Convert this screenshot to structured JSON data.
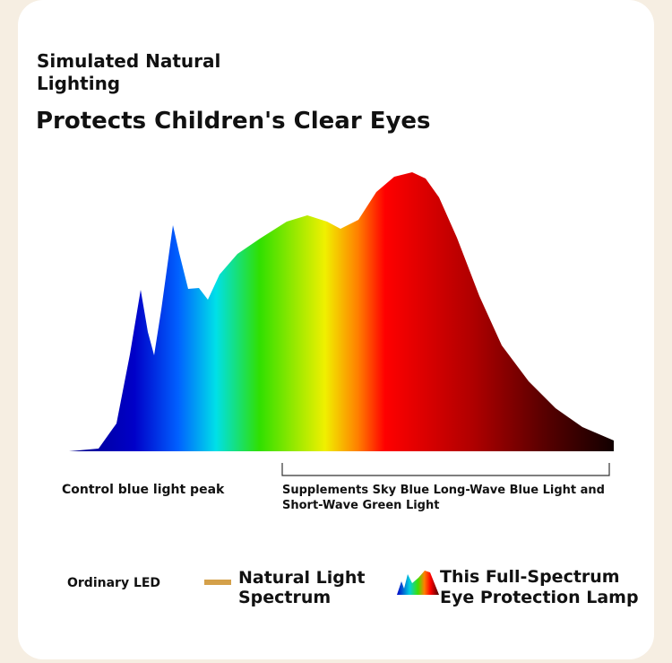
{
  "header": {
    "subtitle_lines": [
      "Simulated Natural",
      "Lighting"
    ],
    "title": "Protects Children's Clear Eyes"
  },
  "annotations": {
    "left": "Control blue light peak",
    "right_lines": [
      "Supplements Sky Blue Long-Wave Blue Light and",
      "Short-Wave Green Light"
    ]
  },
  "legend": {
    "items": [
      {
        "label_lines": [
          "Ordinary LED"
        ]
      },
      {
        "label_lines": [
          "Natural Light",
          "Spectrum"
        ]
      },
      {
        "label_lines": [
          "This Full-Spectrum",
          "Eye Protection Lamp"
        ]
      }
    ]
  }
}
